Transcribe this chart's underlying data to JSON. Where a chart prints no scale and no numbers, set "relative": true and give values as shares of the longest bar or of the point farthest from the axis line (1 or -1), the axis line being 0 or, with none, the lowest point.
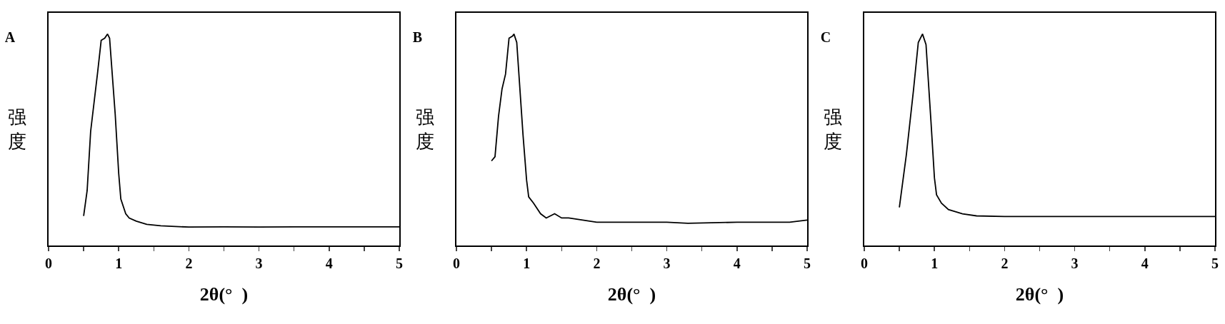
{
  "chart_data": [
    {
      "type": "line",
      "title": "A",
      "xlabel": "2θ(°  )",
      "ylabel": "强度",
      "relative": true,
      "tick_labels": "x",
      "xlim": [
        0,
        5
      ],
      "xticks": [
        0,
        {
          "value": 0.5,
          "label": null
        },
        1,
        {
          "value": 1.5,
          "label": null
        },
        2,
        {
          "value": 2.5,
          "label": null
        },
        3,
        {
          "value": 3.5,
          "label": null
        },
        4,
        {
          "value": 4.5,
          "label": null
        },
        5
      ],
      "series": [
        {
          "color": "#000000",
          "x": [
            0.5,
            0.55,
            0.6,
            0.7,
            0.75,
            0.8,
            0.84,
            0.87,
            0.95,
            1.0,
            1.03,
            1.1,
            1.15,
            1.25,
            1.4,
            1.6,
            2,
            2.5,
            3,
            3.5,
            4,
            4.5,
            5
          ],
          "values": [
            0.14,
            0.26,
            0.54,
            0.82,
            0.97,
            0.98,
            1,
            0.98,
            0.62,
            0.34,
            0.22,
            0.15,
            0.13,
            0.115,
            0.1,
            0.093,
            0.087,
            0.088,
            0.087,
            0.088,
            0.088,
            0.088,
            0.088
          ]
        }
      ]
    },
    {
      "type": "line",
      "title": "B",
      "xlabel": "2θ(°  )",
      "ylabel": "强度",
      "relative": true,
      "tick_labels": "x",
      "xlim": [
        0,
        5
      ],
      "xticks": [
        0,
        {
          "value": 0.5,
          "label": null
        },
        1,
        {
          "value": 1.5,
          "label": null
        },
        2,
        {
          "value": 2.5,
          "label": null
        },
        3,
        {
          "value": 3.5,
          "label": null
        },
        4,
        {
          "value": 4.5,
          "label": null
        },
        5
      ],
      "series": [
        {
          "color": "#000000",
          "x": [
            0.5,
            0.55,
            0.6,
            0.65,
            0.7,
            0.75,
            0.8,
            0.82,
            0.86,
            0.95,
            1.0,
            1.03,
            1.1,
            1.2,
            1.28,
            1.4,
            1.5,
            1.6,
            1.8,
            2.0,
            2.5,
            3.0,
            3.3,
            4.0,
            4.75,
            5.0
          ],
          "values": [
            0.4,
            0.42,
            0.61,
            0.74,
            0.81,
            0.98,
            0.99,
            1,
            0.96,
            0.52,
            0.31,
            0.23,
            0.2,
            0.15,
            0.13,
            0.15,
            0.13,
            0.13,
            0.12,
            0.11,
            0.11,
            0.11,
            0.105,
            0.11,
            0.11,
            0.12
          ]
        }
      ]
    },
    {
      "type": "line",
      "title": "C",
      "xlabel": "2θ(°  )",
      "ylabel": "强度",
      "relative": true,
      "tick_labels": "x",
      "xlim": [
        0,
        5
      ],
      "xticks": [
        0,
        {
          "value": 0.5,
          "label": null
        },
        1,
        {
          "value": 1.5,
          "label": null
        },
        2,
        {
          "value": 2.5,
          "label": null
        },
        3,
        {
          "value": 3.5,
          "label": null
        },
        4,
        {
          "value": 4.5,
          "label": null
        },
        5
      ],
      "series": [
        {
          "color": "#000000",
          "x": [
            0.5,
            0.6,
            0.7,
            0.77,
            0.83,
            0.88,
            0.95,
            1.0,
            1.03,
            1.1,
            1.2,
            1.3,
            1.4,
            1.6,
            2,
            3,
            4,
            5
          ],
          "values": [
            0.18,
            0.43,
            0.73,
            0.96,
            1,
            0.95,
            0.59,
            0.32,
            0.24,
            0.2,
            0.17,
            0.16,
            0.15,
            0.14,
            0.137,
            0.137,
            0.137,
            0.137
          ]
        }
      ]
    }
  ]
}
